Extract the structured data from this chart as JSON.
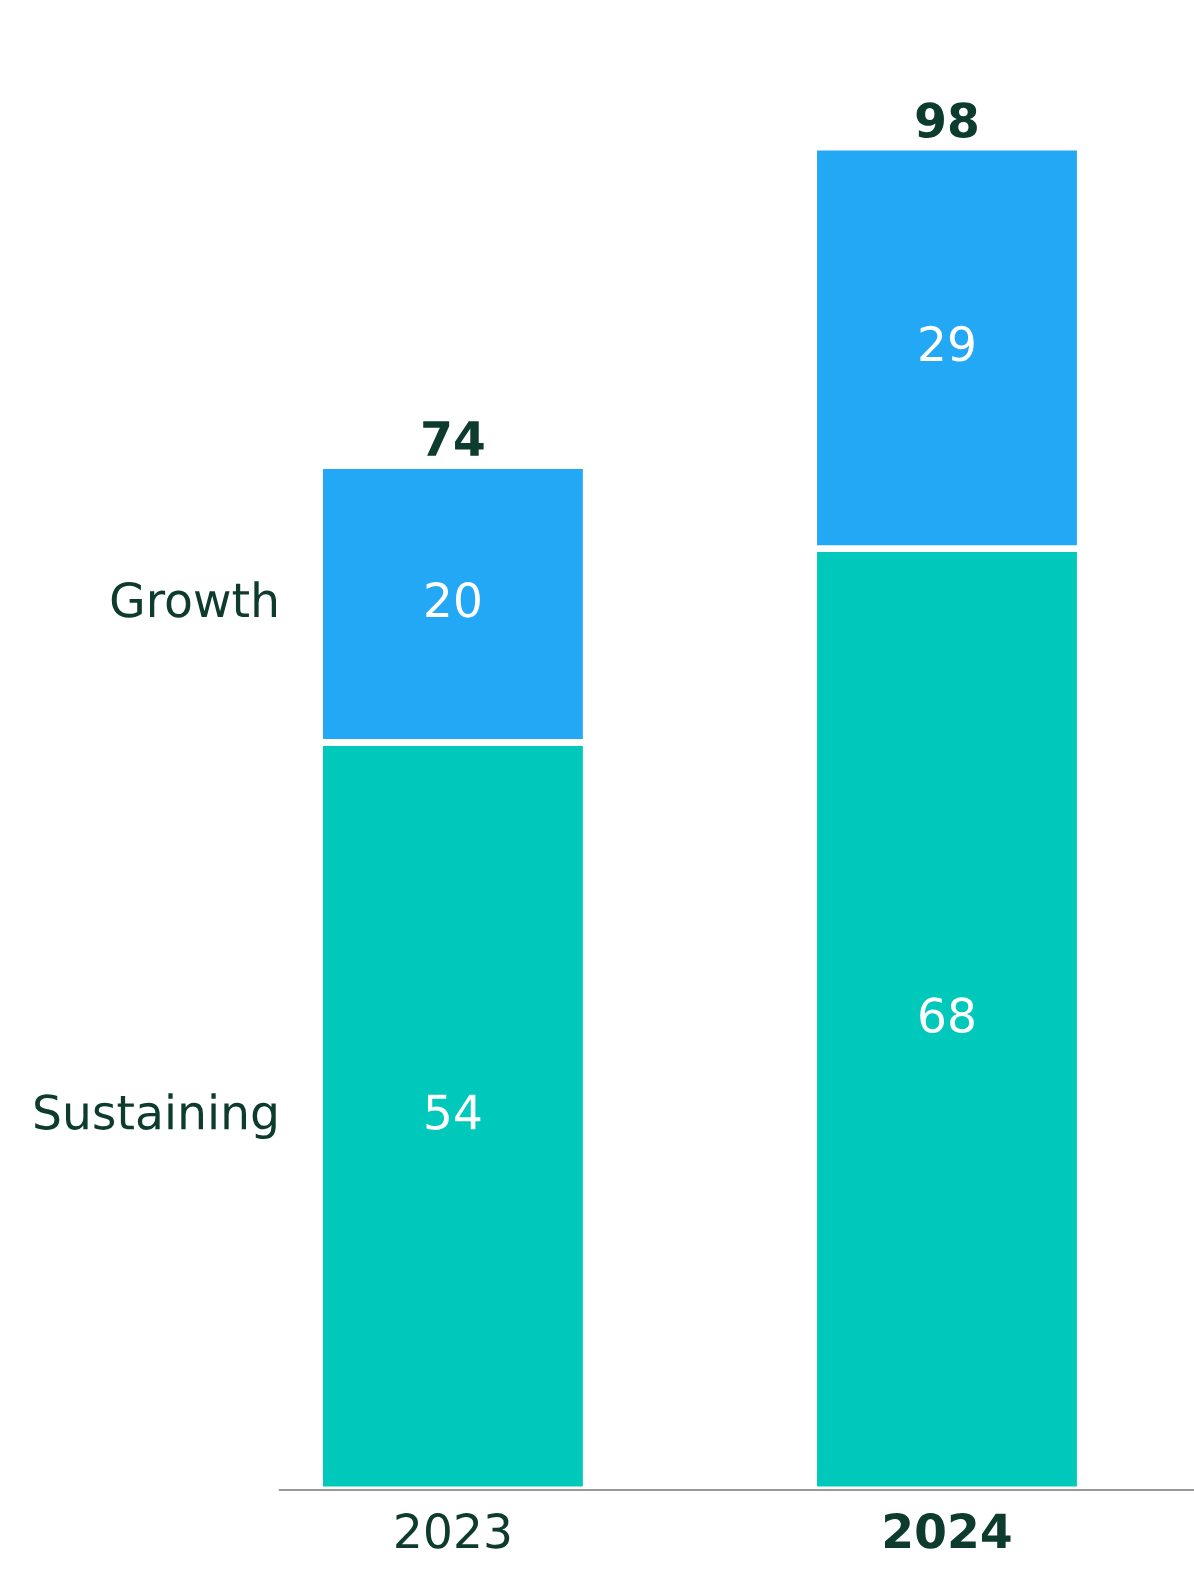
{
  "chart_data": {
    "type": "bar",
    "stacked": true,
    "categories": [
      "2023",
      "2024"
    ],
    "series": [
      {
        "name": "Sustaining",
        "color": "#00c9bc",
        "values": [
          54,
          68
        ]
      },
      {
        "name": "Growth",
        "color": "#22a8f5",
        "values": [
          20,
          29
        ]
      }
    ],
    "data_labels": true,
    "totals": [
      "74",
      "98"
    ],
    "legend": false,
    "grid": false,
    "tick_labels": "x"
  }
}
